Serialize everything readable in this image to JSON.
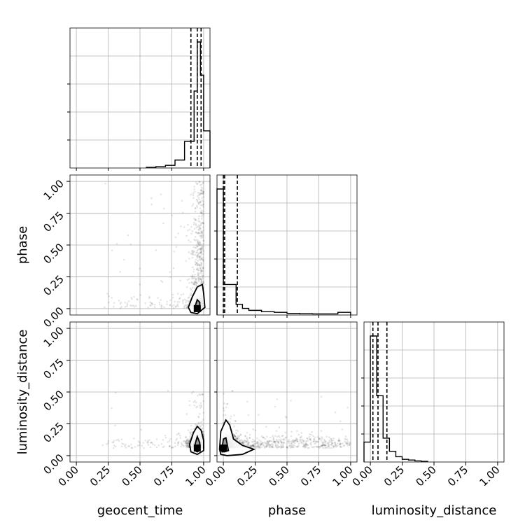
{
  "chart_data": {
    "type": "corner",
    "parameters": [
      "geocent_time",
      "phase",
      "luminosity_distance"
    ],
    "x_ticks": [
      "0.00",
      "0.25",
      "0.50",
      "0.75",
      "1.00"
    ],
    "y_ticks": [
      "0.00",
      "0.25",
      "0.50",
      "0.75",
      "1.00"
    ],
    "grid": true,
    "axis_range": [
      -0.05,
      1.05
    ],
    "histograms": [
      {
        "parameter": "geocent_time",
        "bin_edges": [
          0.55,
          0.625,
          0.7,
          0.775,
          0.85,
          0.925,
          0.95,
          0.975,
          1.0,
          1.05
        ],
        "counts": [
          0.005,
          0.01,
          0.02,
          0.06,
          0.2,
          0.58,
          0.95,
          0.7,
          0.28
        ],
        "quantiles": [
          0.9,
          0.95,
          0.98
        ]
      },
      {
        "parameter": "phase",
        "bin_edges": [
          -0.05,
          0.0,
          0.1,
          0.15,
          0.2,
          0.3,
          0.4,
          0.5,
          0.6,
          0.7,
          0.8,
          0.9,
          1.0
        ],
        "counts": [
          0.95,
          0.23,
          0.08,
          0.05,
          0.035,
          0.025,
          0.02,
          0.012,
          0.01,
          0.008,
          0.008,
          0.02
        ],
        "quantiles": [
          0.0,
          0.01,
          0.11
        ]
      },
      {
        "parameter": "luminosity_distance",
        "bin_edges": [
          -0.05,
          0.0,
          0.05,
          0.1,
          0.15,
          0.2,
          0.25,
          0.3,
          0.35,
          0.4,
          0.45
        ],
        "counts": [
          0.15,
          0.95,
          0.5,
          0.18,
          0.08,
          0.04,
          0.02,
          0.015,
          0.008,
          0.005
        ],
        "quantiles": [
          0.02,
          0.06,
          0.13
        ]
      }
    ],
    "scatter_panels": [
      {
        "x": "geocent_time",
        "y": "phase",
        "peak": [
          0.95,
          0.0
        ],
        "contours": [
          [
            [
              0.88,
              0.01
            ],
            [
              0.91,
              0.09
            ],
            [
              0.95,
              0.17
            ],
            [
              0.99,
              0.19
            ],
            [
              1.0,
              0.12
            ],
            [
              1.01,
              0.01
            ],
            [
              0.95,
              -0.04
            ],
            [
              0.9,
              -0.03
            ]
          ],
          [
            [
              0.93,
              0.01
            ],
            [
              0.95,
              0.07
            ],
            [
              0.97,
              0.05
            ],
            [
              0.97,
              -0.01
            ],
            [
              0.95,
              -0.02
            ],
            [
              0.93,
              -0.01
            ]
          ]
        ]
      },
      {
        "x": "geocent_time",
        "y": "luminosity_distance",
        "peak": [
          0.95,
          0.06
        ],
        "contours": [
          [
            [
              0.89,
              0.09
            ],
            [
              0.92,
              0.18
            ],
            [
              0.95,
              0.23
            ],
            [
              0.98,
              0.2
            ],
            [
              1.0,
              0.12
            ],
            [
              1.0,
              0.04
            ],
            [
              0.95,
              0.01
            ],
            [
              0.9,
              0.03
            ]
          ],
          [
            [
              0.93,
              0.08
            ],
            [
              0.95,
              0.15
            ],
            [
              0.97,
              0.1
            ],
            [
              0.97,
              0.04
            ],
            [
              0.95,
              0.03
            ],
            [
              0.93,
              0.04
            ]
          ]
        ]
      },
      {
        "x": "phase",
        "y": "luminosity_distance",
        "peak": [
          0.0,
          0.06
        ],
        "contours": [
          [
            [
              -0.03,
              0.05
            ],
            [
              -0.02,
              0.19
            ],
            [
              0.02,
              0.28
            ],
            [
              0.05,
              0.24
            ],
            [
              0.08,
              0.13
            ],
            [
              0.15,
              0.08
            ],
            [
              0.24,
              0.05
            ],
            [
              0.15,
              0.01
            ],
            [
              0.03,
              0.0
            ],
            [
              -0.02,
              0.01
            ]
          ],
          [
            [
              -0.01,
              0.06
            ],
            [
              0.0,
              0.13
            ],
            [
              0.02,
              0.14
            ],
            [
              0.03,
              0.09
            ],
            [
              0.04,
              0.04
            ],
            [
              0.01,
              0.03
            ],
            [
              -0.01,
              0.03
            ]
          ]
        ]
      }
    ]
  }
}
